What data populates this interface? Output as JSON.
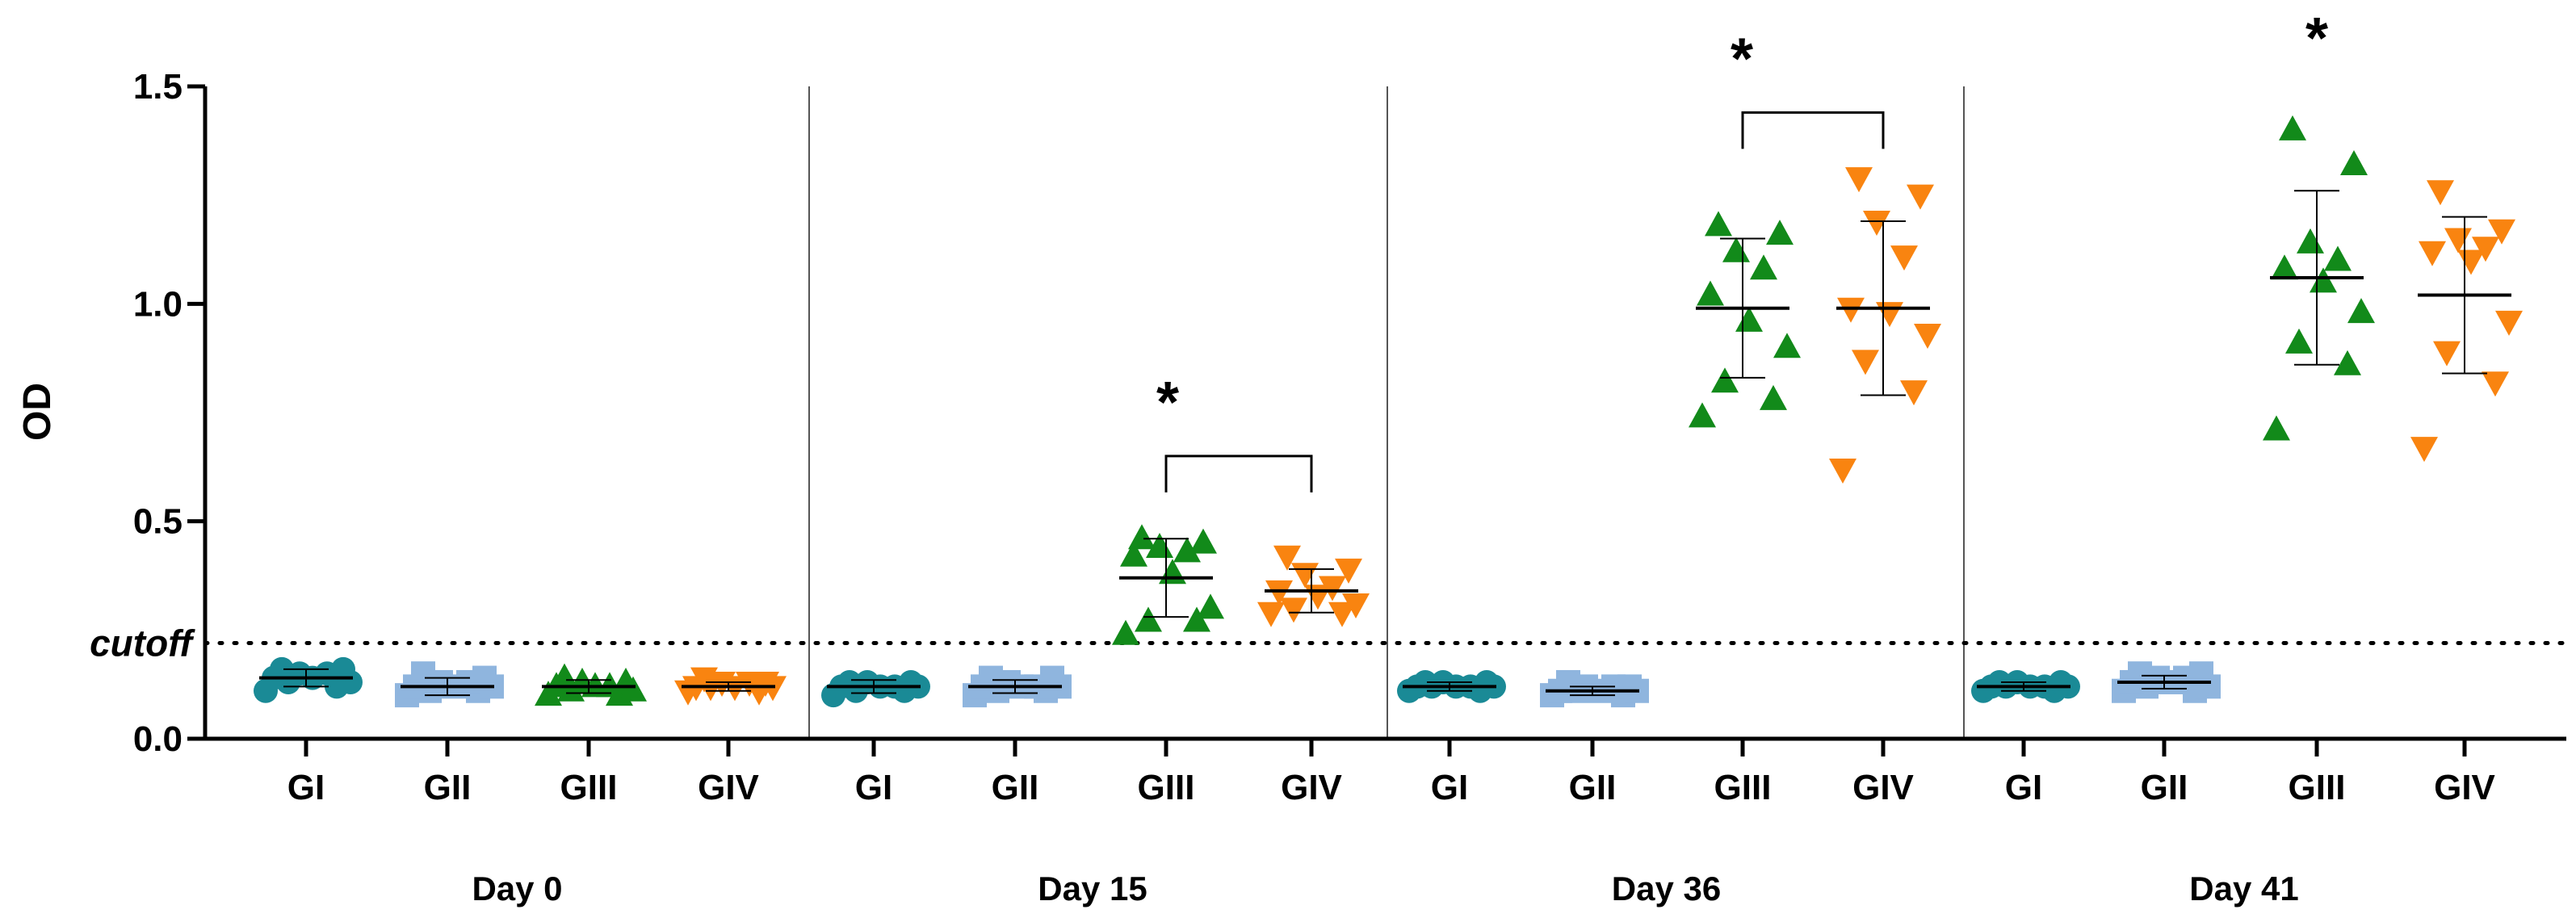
{
  "chart_data": {
    "type": "scatter",
    "ylabel": "OD",
    "ylim": [
      0,
      1.5
    ],
    "yticks": [
      "0.0",
      "0.5",
      "1.0",
      "1.5"
    ],
    "cutoff": {
      "label": "cutoff",
      "value": 0.22
    },
    "groups": [
      "GI",
      "GII",
      "GIII",
      "GIV"
    ],
    "colors": {
      "GI": "#1a8a96",
      "GII": "#8fb5de",
      "GIII": "#128a1a",
      "GIV": "#f98410"
    },
    "markers": {
      "GI": "circle",
      "GII": "square",
      "GIII": "triangle-up",
      "GIV": "triangle-down"
    },
    "significance_marker": "*",
    "days": [
      {
        "label": "Day 0",
        "series": [
          {
            "group": "GI",
            "mean": 0.14,
            "sd": 0.02,
            "values": [
              0.11,
              0.12,
              0.13,
              0.13,
              0.14,
              0.14,
              0.15,
              0.15,
              0.16,
              0.16
            ]
          },
          {
            "group": "GII",
            "mean": 0.12,
            "sd": 0.02,
            "values": [
              0.1,
              0.11,
              0.11,
              0.12,
              0.12,
              0.12,
              0.13,
              0.13,
              0.14,
              0.15
            ]
          },
          {
            "group": "GIII",
            "mean": 0.12,
            "sd": 0.015,
            "values": [
              0.1,
              0.1,
              0.11,
              0.11,
              0.12,
              0.12,
              0.12,
              0.13,
              0.13,
              0.14
            ]
          },
          {
            "group": "GIV",
            "mean": 0.12,
            "sd": 0.01,
            "values": [
              0.11,
              0.11,
              0.12,
              0.12,
              0.12,
              0.12,
              0.13,
              0.13,
              0.13,
              0.14
            ]
          }
        ]
      },
      {
        "label": "Day 15",
        "series": [
          {
            "group": "GI",
            "mean": 0.12,
            "sd": 0.015,
            "values": [
              0.1,
              0.11,
              0.11,
              0.12,
              0.12,
              0.12,
              0.12,
              0.13,
              0.13,
              0.13
            ]
          },
          {
            "group": "GII",
            "mean": 0.12,
            "sd": 0.015,
            "values": [
              0.1,
              0.11,
              0.11,
              0.12,
              0.12,
              0.12,
              0.12,
              0.13,
              0.14,
              0.14
            ]
          },
          {
            "group": "GIII",
            "mean": 0.37,
            "sd": 0.09,
            "values": [
              0.24,
              0.27,
              0.27,
              0.3,
              0.38,
              0.42,
              0.43,
              0.44,
              0.45,
              0.46
            ]
          },
          {
            "group": "GIV",
            "mean": 0.34,
            "sd": 0.05,
            "values": [
              0.29,
              0.29,
              0.3,
              0.31,
              0.33,
              0.34,
              0.35,
              0.38,
              0.39,
              0.42
            ]
          }
        ],
        "significance": {
          "from": "GIII",
          "to": "GIV",
          "bracket_y": 0.65
        }
      },
      {
        "label": "Day 36",
        "series": [
          {
            "group": "GI",
            "mean": 0.12,
            "sd": 0.01,
            "values": [
              0.11,
              0.11,
              0.12,
              0.12,
              0.12,
              0.12,
              0.12,
              0.13,
              0.13,
              0.13
            ]
          },
          {
            "group": "GII",
            "mean": 0.11,
            "sd": 0.01,
            "values": [
              0.1,
              0.1,
              0.11,
              0.11,
              0.11,
              0.11,
              0.12,
              0.12,
              0.12,
              0.13
            ]
          },
          {
            "group": "GIII",
            "mean": 0.99,
            "sd": 0.16,
            "values": [
              0.74,
              0.78,
              0.82,
              0.9,
              0.96,
              1.02,
              1.08,
              1.12,
              1.16,
              1.18
            ]
          },
          {
            "group": "GIV",
            "mean": 0.99,
            "sd": 0.2,
            "values": [
              0.62,
              0.8,
              0.87,
              0.93,
              0.98,
              0.99,
              1.11,
              1.19,
              1.25,
              1.29
            ]
          }
        ],
        "significance": {
          "from": "GIII",
          "to": "GIV",
          "bracket_y": 1.44
        }
      },
      {
        "label": "Day 41",
        "series": [
          {
            "group": "GI",
            "mean": 0.12,
            "sd": 0.01,
            "values": [
              0.11,
              0.11,
              0.12,
              0.12,
              0.12,
              0.12,
              0.12,
              0.13,
              0.13,
              0.13
            ]
          },
          {
            "group": "GII",
            "mean": 0.13,
            "sd": 0.015,
            "values": [
              0.11,
              0.11,
              0.12,
              0.12,
              0.13,
              0.13,
              0.14,
              0.14,
              0.15,
              0.15
            ]
          },
          {
            "group": "GIII",
            "mean": 1.06,
            "sd": 0.2,
            "values": [
              0.71,
              0.86,
              0.91,
              0.98,
              1.05,
              1.08,
              1.1,
              1.14,
              1.32,
              1.4
            ]
          },
          {
            "group": "GIV",
            "mean": 1.02,
            "sd": 0.18,
            "values": [
              0.67,
              0.82,
              0.89,
              0.96,
              1.1,
              1.12,
              1.13,
              1.15,
              1.17,
              1.26
            ]
          }
        ],
        "significance": {
          "label_only": true,
          "over": "GIII"
        }
      }
    ]
  }
}
